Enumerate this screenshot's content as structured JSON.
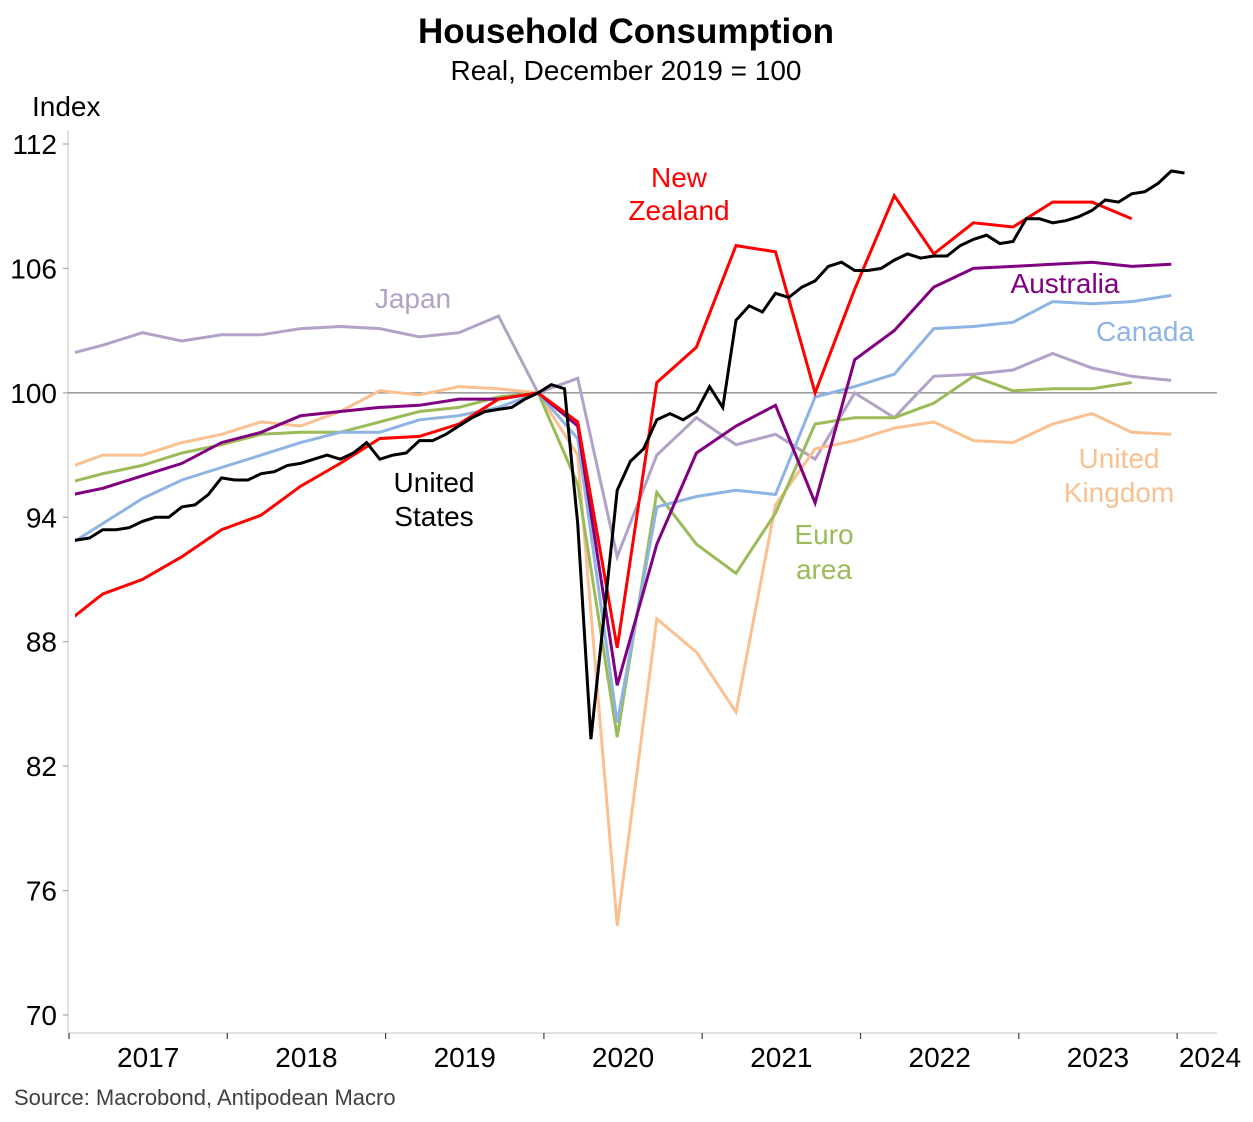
{
  "chart_data": {
    "type": "line",
    "title": "Household Consumption",
    "subtitle": "Real, December 2019 = 100",
    "ylabel": "Index",
    "xlabel": "",
    "ylim": [
      70,
      112
    ],
    "yticks": [
      "70",
      "76",
      "82",
      "88",
      "94",
      "100",
      "106",
      "112"
    ],
    "xticks": [
      "2017",
      "2018",
      "2019",
      "2020",
      "2021",
      "2022",
      "2023",
      "2024"
    ],
    "reference_line": 100,
    "grid": false,
    "series": [
      {
        "name": "Japan",
        "label_lines": [
          "Japan"
        ],
        "color": "#b3a2c7",
        "frequency": "quarterly",
        "start": "2016Q4",
        "values": [
          101.8,
          102.3,
          102.9,
          102.5,
          102.8,
          102.8,
          103.1,
          103.2,
          103.1,
          102.7,
          102.9,
          103.7,
          100.0,
          100.7,
          92.1,
          97.0,
          98.8,
          97.5,
          98.0,
          96.8,
          100.0,
          98.8,
          100.8,
          100.9,
          101.1,
          101.9,
          101.2,
          100.8,
          100.6
        ]
      },
      {
        "name": "United Kingdom",
        "label_lines": [
          "United",
          "Kingdom"
        ],
        "color": "#fac090",
        "frequency": "quarterly",
        "start": "2016Q4",
        "values": [
          96.3,
          97.0,
          97.0,
          97.6,
          98.0,
          98.6,
          98.4,
          99.1,
          100.1,
          99.9,
          100.3,
          100.2,
          100.0,
          97.0,
          74.3,
          89.1,
          87.5,
          84.6,
          94.6,
          97.3,
          97.7,
          98.3,
          98.6,
          97.7,
          97.6,
          98.5,
          99.0,
          98.1,
          98.0
        ]
      },
      {
        "name": "Euro area",
        "label_lines": [
          "Euro",
          "area"
        ],
        "color": "#9bbb59",
        "frequency": "quarterly",
        "start": "2016Q4",
        "values": [
          95.6,
          96.1,
          96.5,
          97.1,
          97.5,
          98.0,
          98.1,
          98.1,
          98.6,
          99.1,
          99.3,
          99.8,
          100.0,
          95.6,
          83.4,
          95.2,
          92.7,
          91.3,
          94.2,
          98.5,
          98.8,
          98.8,
          99.5,
          100.8,
          100.1,
          100.2,
          100.2,
          100.5
        ]
      },
      {
        "name": "Canada",
        "label_lines": [
          "Canada"
        ],
        "color": "#8db4e2",
        "frequency": "quarterly",
        "start": "2016Q4",
        "values": [
          92.5,
          93.7,
          94.9,
          95.8,
          96.4,
          97.0,
          97.6,
          98.1,
          98.1,
          98.7,
          98.9,
          99.3,
          100.0,
          97.8,
          84.1,
          94.5,
          95.0,
          95.3,
          95.1,
          99.8,
          100.3,
          100.9,
          103.1,
          103.2,
          103.4,
          104.4,
          104.3,
          104.4,
          104.7
        ]
      },
      {
        "name": "Australia",
        "label_lines": [
          "Australia"
        ],
        "color": "#800080",
        "frequency": "quarterly",
        "start": "2016Q4",
        "values": [
          95.0,
          95.4,
          96.0,
          96.6,
          97.6,
          98.1,
          98.9,
          99.1,
          99.3,
          99.4,
          99.7,
          99.7,
          100.0,
          98.4,
          85.9,
          92.7,
          97.1,
          98.4,
          99.4,
          94.7,
          101.6,
          103.0,
          105.1,
          106.0,
          106.1,
          106.2,
          106.3,
          106.1,
          106.2
        ]
      },
      {
        "name": "New Zealand",
        "label_lines": [
          "New",
          "Zealand"
        ],
        "color": "#ff0000",
        "frequency": "quarterly",
        "start": "2016Q4",
        "values": [
          88.8,
          90.3,
          91.0,
          92.1,
          93.4,
          94.1,
          95.5,
          96.6,
          97.8,
          97.9,
          98.5,
          99.7,
          100.0,
          98.6,
          87.7,
          100.5,
          102.2,
          107.1,
          106.8,
          100.0,
          105.0,
          109.5,
          106.7,
          108.2,
          108.0,
          109.2,
          109.2,
          108.4
        ]
      },
      {
        "name": "United States",
        "label_lines": [
          "United",
          "States"
        ],
        "color": "#000000",
        "frequency": "monthly",
        "start": "2016-12",
        "values": [
          92.9,
          92.9,
          93.0,
          93.4,
          93.4,
          93.5,
          93.8,
          94.0,
          94.0,
          94.5,
          94.6,
          95.1,
          95.9,
          95.8,
          95.8,
          96.1,
          96.2,
          96.5,
          96.6,
          96.8,
          97.0,
          96.8,
          97.1,
          97.6,
          96.8,
          97.0,
          97.1,
          97.7,
          97.7,
          98.0,
          98.4,
          98.8,
          99.1,
          99.2,
          99.3,
          99.7,
          100.0,
          100.4,
          100.2,
          93.7,
          83.3,
          89.3,
          95.3,
          96.7,
          97.3,
          98.7,
          99.0,
          98.7,
          99.1,
          100.3,
          99.3,
          103.5,
          104.2,
          103.9,
          104.8,
          104.6,
          105.1,
          105.4,
          106.1,
          106.3,
          105.9,
          105.9,
          106.0,
          106.4,
          106.7,
          106.5,
          106.6,
          106.6,
          107.1,
          107.4,
          107.6,
          107.2,
          107.3,
          108.4,
          108.4,
          108.2,
          108.3,
          108.5,
          108.8,
          109.3,
          109.2,
          109.6,
          109.7,
          110.1,
          110.7,
          110.6
        ]
      }
    ]
  },
  "source": "Source: Macrobond, Antipodean Macro"
}
